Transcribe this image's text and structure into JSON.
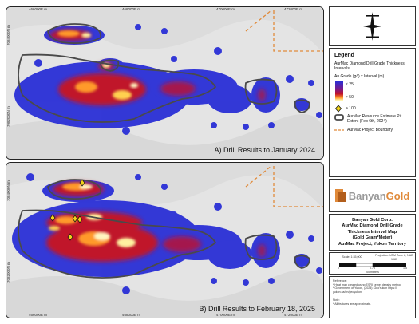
{
  "legend": {
    "title": "Legend",
    "subtitle": "AurMac Diamond Drill Grade Thickness Intervals",
    "units": "Au Grade (g/t)  x Interval (m)",
    "ramp_labels": [
      "< 25",
      "> 50"
    ],
    "marker_label": "> 100",
    "pit_label": "AurMac Resource Estimate Pit Extent (Feb 6th, 2024)",
    "boundary_label": "AurMac Project Boundary",
    "colors": {
      "low": "#2a2fd6",
      "mid": "#c0122b",
      "high": "#ffffc0",
      "pit": "#4a4a4a",
      "boundary": "#e08a3a",
      "marker": "#f2d21a"
    }
  },
  "map_a": {
    "label": "A) Drill Results to January 2024",
    "x_ticks": [
      "466000E m",
      "468000E m",
      "470000E m",
      "472000E m"
    ],
    "y_ticks": [
      "7084000N m",
      "7082000N m"
    ]
  },
  "map_b": {
    "label": "B) Drill Results to February 18, 2025",
    "x_ticks": [
      "466000E m",
      "468000E m",
      "470000E m",
      "472000E m"
    ],
    "y_ticks": [
      "7084000N m",
      "7082000N m"
    ]
  },
  "logo": {
    "part1": "Banyan",
    "part2": "Gold"
  },
  "title": {
    "company": "Banyan Gold Corp.",
    "line1": "AurMac Diamond Drill Grade",
    "line2": "Thickness Interval Map",
    "line3": "(Gold Gram*Meter)",
    "line4": "AurMac Project, Yukon Territory"
  },
  "scale_info": {
    "scale": "Scale: 1:35,000",
    "projection": "Projection: UTM Zone 8, NAD 1983",
    "bar_labels": [
      "0",
      "0.75",
      "1.5"
    ],
    "units": "Kilometers"
  },
  "references": {
    "heading": "Reference:",
    "lines": [
      "* Heat map created using ESRI kernel density method",
      "* Government of Yukon, (2024): GeoYukon https://",
      "yukon.ca/en/geoyukon"
    ],
    "note_heading": "Note:",
    "note": "* All features are approximate."
  }
}
